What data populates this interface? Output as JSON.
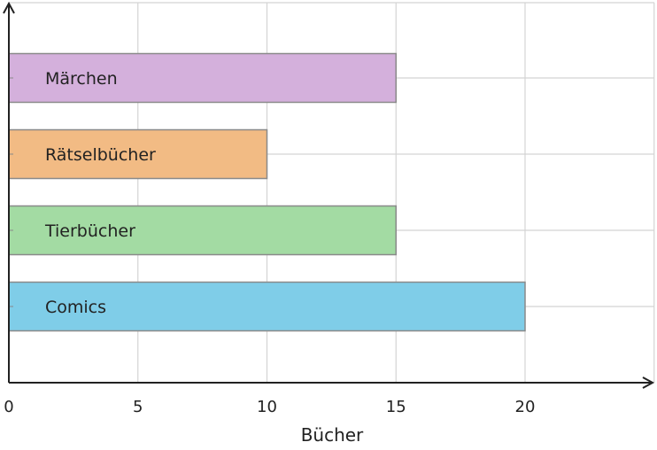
{
  "chart_data": {
    "type": "bar",
    "orientation": "horizontal",
    "categories": [
      "Comics",
      "Tierbücher",
      "Rätselbücher",
      "Märchen"
    ],
    "values": [
      20,
      15,
      10,
      15
    ],
    "colors": [
      "#7fcde8",
      "#a3dba3",
      "#f2bb84",
      "#d4b0dc"
    ],
    "xlabel": "Bücher",
    "ylabel": "",
    "xlim": [
      0,
      25
    ],
    "xticks": [
      "0",
      "5",
      "10",
      "15",
      "20"
    ],
    "grid": true,
    "legend": "none"
  }
}
